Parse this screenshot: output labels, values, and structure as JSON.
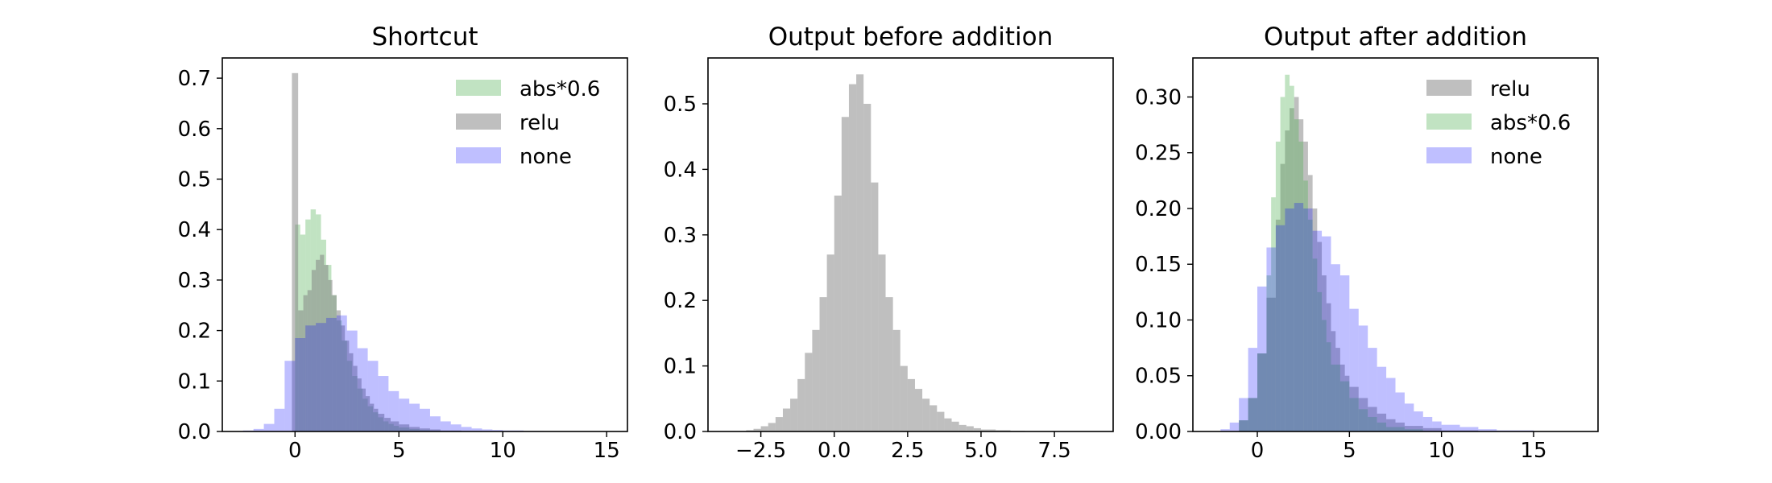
{
  "chart_data": [
    {
      "type": "bar",
      "title": "Shortcut",
      "xlim": [
        -3.5,
        16
      ],
      "ylim": [
        0,
        0.74
      ],
      "x_ticks": [
        0,
        5,
        10,
        15
      ],
      "x_tick_labels": [
        "0",
        "5",
        "10",
        "15"
      ],
      "y_ticks": [
        0,
        0.1,
        0.2,
        0.3,
        0.4,
        0.5,
        0.6,
        0.7
      ],
      "y_tick_labels": [
        "0.0",
        "0.1",
        "0.2",
        "0.3",
        "0.4",
        "0.5",
        "0.6",
        "0.7"
      ],
      "legend_position": "top-right",
      "series": [
        {
          "name": "abs*0.6",
          "color": "#4caf50",
          "opacity": 0.35,
          "bin_edges": [
            0,
            0.25,
            0.5,
            0.75,
            1.0,
            1.25,
            1.5,
            1.75,
            2.0,
            2.25,
            2.5,
            2.75,
            3.0,
            3.25,
            3.5,
            3.75,
            4.0,
            4.25,
            4.5,
            4.75,
            5.0,
            5.5,
            6.0,
            6.5,
            7.0,
            8.0
          ],
          "values": [
            0.41,
            0.39,
            0.42,
            0.44,
            0.43,
            0.38,
            0.33,
            0.27,
            0.22,
            0.18,
            0.14,
            0.11,
            0.085,
            0.065,
            0.05,
            0.038,
            0.028,
            0.02,
            0.015,
            0.011,
            0.008,
            0.005,
            0.003,
            0.002,
            0.001
          ]
        },
        {
          "name": "relu",
          "color": "#808080",
          "opacity": 0.5,
          "bin_edges": [
            -0.15,
            0.15,
            0.4,
            0.6,
            0.8,
            1.0,
            1.2,
            1.4,
            1.6,
            1.8,
            2.0,
            2.2,
            2.4,
            2.6,
            2.8,
            3.0,
            3.2,
            3.4,
            3.6,
            3.8,
            4.0,
            4.3,
            4.6,
            5.0,
            5.5,
            6.0,
            6.5,
            7.0,
            8.0,
            9.0
          ],
          "values": [
            0.71,
            0.24,
            0.27,
            0.28,
            0.32,
            0.34,
            0.35,
            0.33,
            0.3,
            0.27,
            0.24,
            0.21,
            0.18,
            0.155,
            0.13,
            0.105,
            0.085,
            0.07,
            0.055,
            0.045,
            0.035,
            0.027,
            0.02,
            0.014,
            0.009,
            0.006,
            0.004,
            0.002,
            0.001
          ]
        },
        {
          "name": "none",
          "color": "#0000ff",
          "opacity": 0.25,
          "bin_edges": [
            -2.5,
            -2.0,
            -1.5,
            -1.0,
            -0.5,
            0,
            0.5,
            1.0,
            1.5,
            2.0,
            2.5,
            3.0,
            3.5,
            4.0,
            4.5,
            5.0,
            5.5,
            6.0,
            6.5,
            7.0,
            7.5,
            8.0,
            8.5,
            9.0,
            9.5,
            10.0,
            11.0,
            12.0,
            14.0
          ],
          "values": [
            0.002,
            0.005,
            0.015,
            0.045,
            0.14,
            0.185,
            0.21,
            0.215,
            0.225,
            0.23,
            0.2,
            0.165,
            0.14,
            0.11,
            0.08,
            0.065,
            0.055,
            0.045,
            0.03,
            0.02,
            0.014,
            0.009,
            0.006,
            0.004,
            0.003,
            0.002,
            0.001,
            0.0005
          ]
        }
      ]
    },
    {
      "type": "bar",
      "title": "Output before addition",
      "xlim": [
        -4.3,
        9.5
      ],
      "ylim": [
        0,
        0.57
      ],
      "x_ticks": [
        -2.5,
        0.0,
        2.5,
        5.0,
        7.5
      ],
      "x_tick_labels": [
        "−2.5",
        "0.0",
        "2.5",
        "5.0",
        "7.5"
      ],
      "y_ticks": [
        0,
        0.1,
        0.2,
        0.3,
        0.4,
        0.5
      ],
      "y_tick_labels": [
        "0.0",
        "0.1",
        "0.2",
        "0.3",
        "0.4",
        "0.5"
      ],
      "legend_position": "none",
      "series": [
        {
          "name": "",
          "color": "#808080",
          "opacity": 0.5,
          "bin_edges": [
            -3.0,
            -2.75,
            -2.5,
            -2.25,
            -2.0,
            -1.75,
            -1.5,
            -1.25,
            -1.0,
            -0.75,
            -0.5,
            -0.25,
            0.0,
            0.25,
            0.5,
            0.75,
            1.0,
            1.25,
            1.5,
            1.75,
            2.0,
            2.25,
            2.5,
            2.75,
            3.0,
            3.25,
            3.5,
            3.75,
            4.0,
            4.25,
            4.5,
            4.75,
            5.0,
            5.5,
            6.0,
            6.5,
            7.0,
            8.0
          ],
          "values": [
            0.002,
            0.004,
            0.008,
            0.013,
            0.022,
            0.035,
            0.05,
            0.08,
            0.12,
            0.155,
            0.205,
            0.27,
            0.36,
            0.48,
            0.53,
            0.545,
            0.5,
            0.38,
            0.27,
            0.205,
            0.155,
            0.1,
            0.08,
            0.065,
            0.05,
            0.04,
            0.03,
            0.02,
            0.015,
            0.01,
            0.008,
            0.005,
            0.003,
            0.002,
            0.001,
            0.0005,
            0.0002
          ]
        }
      ]
    },
    {
      "type": "bar",
      "title": "Output after addition",
      "xlim": [
        -3.5,
        18.5
      ],
      "ylim": [
        0,
        0.335
      ],
      "x_ticks": [
        0,
        5,
        10,
        15
      ],
      "x_tick_labels": [
        "0",
        "5",
        "10",
        "15"
      ],
      "y_ticks": [
        0,
        0.05,
        0.1,
        0.15,
        0.2,
        0.25,
        0.3
      ],
      "y_tick_labels": [
        "0.00",
        "0.05",
        "0.10",
        "0.15",
        "0.20",
        "0.25",
        "0.30"
      ],
      "legend_position": "top-right",
      "series": [
        {
          "name": "relu",
          "color": "#808080",
          "opacity": 0.5,
          "bin_edges": [
            -1.0,
            -0.5,
            0,
            0.5,
            1.0,
            1.25,
            1.5,
            1.75,
            2.0,
            2.25,
            2.5,
            2.75,
            3.0,
            3.25,
            3.5,
            3.75,
            4.0,
            4.25,
            4.5,
            4.75,
            5.0,
            5.5,
            6.0,
            6.5,
            7.0,
            7.5,
            8.0,
            9.0,
            10.0,
            12.0
          ],
          "values": [
            0.01,
            0.03,
            0.07,
            0.12,
            0.19,
            0.24,
            0.27,
            0.29,
            0.3,
            0.28,
            0.26,
            0.23,
            0.2,
            0.17,
            0.14,
            0.115,
            0.09,
            0.075,
            0.06,
            0.05,
            0.04,
            0.03,
            0.022,
            0.016,
            0.011,
            0.008,
            0.005,
            0.003,
            0.001
          ]
        },
        {
          "name": "abs*0.6",
          "color": "#4caf50",
          "opacity": 0.35,
          "bin_edges": [
            -1.0,
            -0.5,
            0,
            0.5,
            0.75,
            1.0,
            1.25,
            1.5,
            1.75,
            2.0,
            2.25,
            2.5,
            2.75,
            3.0,
            3.25,
            3.5,
            3.75,
            4.0,
            4.5,
            5.0,
            5.5,
            6.0,
            6.5,
            7.0,
            8.0,
            9.0
          ],
          "values": [
            0.01,
            0.03,
            0.07,
            0.14,
            0.21,
            0.26,
            0.3,
            0.32,
            0.31,
            0.28,
            0.26,
            0.225,
            0.19,
            0.155,
            0.125,
            0.1,
            0.08,
            0.06,
            0.045,
            0.03,
            0.02,
            0.013,
            0.008,
            0.004,
            0.002
          ]
        },
        {
          "name": "none",
          "color": "#0000ff",
          "opacity": 0.25,
          "bin_edges": [
            -2.0,
            -1.5,
            -1.0,
            -0.5,
            0,
            0.5,
            1.0,
            1.5,
            2.0,
            2.5,
            3.0,
            3.5,
            4.0,
            4.5,
            5.0,
            5.5,
            6.0,
            6.5,
            7.0,
            7.5,
            8.0,
            8.5,
            9.0,
            9.5,
            10.0,
            11.0,
            12.0,
            13.0,
            15.0
          ],
          "values": [
            0.002,
            0.008,
            0.03,
            0.075,
            0.13,
            0.165,
            0.185,
            0.2,
            0.205,
            0.2,
            0.18,
            0.175,
            0.15,
            0.14,
            0.11,
            0.095,
            0.075,
            0.058,
            0.048,
            0.035,
            0.025,
            0.018,
            0.013,
            0.009,
            0.006,
            0.004,
            0.002,
            0.001
          ]
        }
      ]
    }
  ]
}
